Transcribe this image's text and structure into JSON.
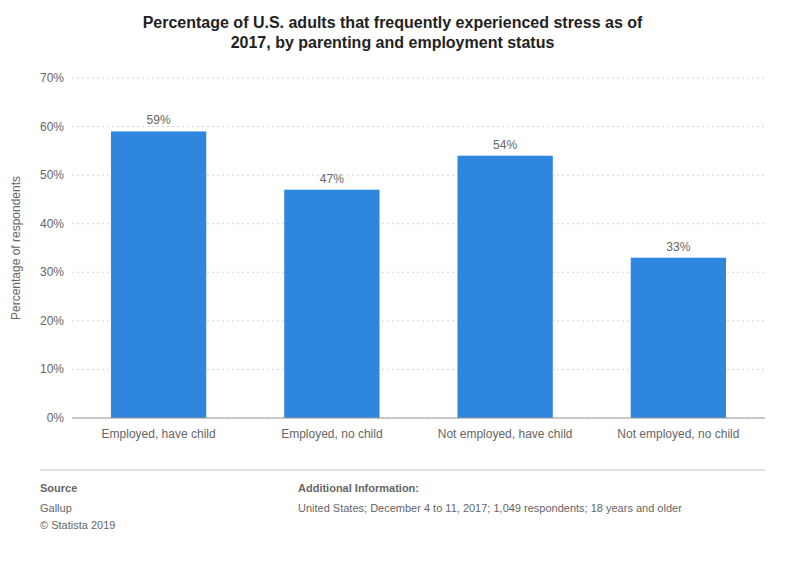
{
  "chart_data": {
    "type": "bar",
    "title": "Percentage of U.S. adults that frequently experienced stress as of\n2017, by parenting and employment status",
    "categories": [
      "Employed, have child",
      "Employed, no child",
      "Not employed, have child",
      "Not employed, no child"
    ],
    "values": [
      59,
      47,
      54,
      33
    ],
    "value_labels": [
      "59%",
      "47%",
      "54%",
      "33%"
    ],
    "color": "#2e86de",
    "ylabel": "Percentage of respondents",
    "ylim": [
      0,
      70
    ],
    "yticks": [
      {
        "value": 0,
        "label": "0%"
      },
      {
        "value": 10,
        "label": "10%"
      },
      {
        "value": 20,
        "label": "20%"
      },
      {
        "value": 30,
        "label": "30%"
      },
      {
        "value": 40,
        "label": "40%"
      },
      {
        "value": 50,
        "label": "50%"
      },
      {
        "value": 60,
        "label": "60%"
      },
      {
        "value": 70,
        "label": "70%"
      }
    ],
    "grid": true,
    "annotations": [
      {
        "title": "Source",
        "text": "Gallup\n© Statista 2019"
      },
      {
        "title": "Additional Information:",
        "text": "United States; December 4 to 11, 2017; 1,049 respondents; 18 years and older"
      }
    ]
  }
}
